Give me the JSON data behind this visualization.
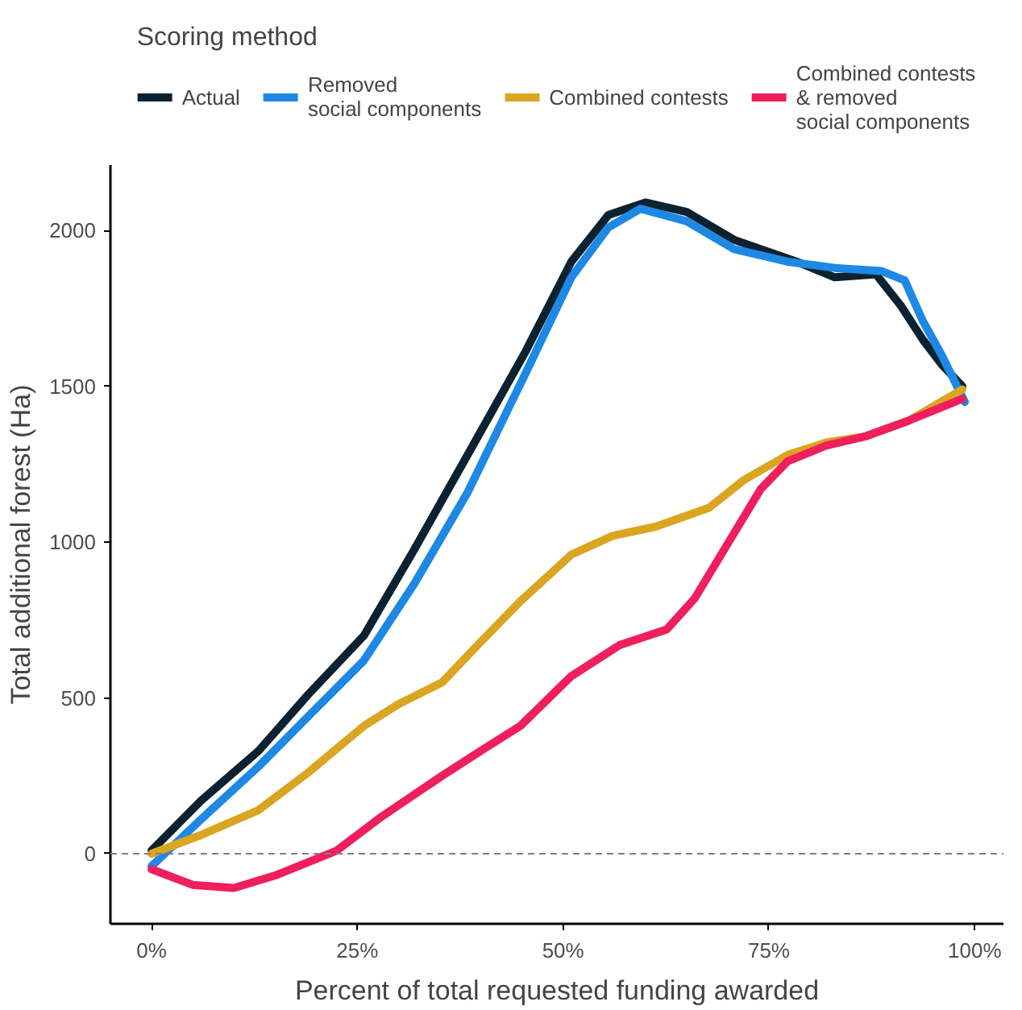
{
  "chart_data": {
    "type": "line",
    "xlabel": "Percent of total requested funding awarded",
    "ylabel": "Total additional forest (Ha)",
    "legend_title": "Scoring method",
    "legend": "top",
    "grid": false,
    "line_style": "solid",
    "marker": "none",
    "xlim": [
      -5,
      103.5
    ],
    "ylim": [
      -225,
      2210
    ],
    "xticks": [
      {
        "value": 0,
        "label": "0%"
      },
      {
        "value": 25,
        "label": "25%"
      },
      {
        "value": 50,
        "label": "50%"
      },
      {
        "value": 75,
        "label": "75%"
      },
      {
        "value": 100,
        "label": "100%"
      }
    ],
    "yticks": [
      0,
      500,
      1000,
      1500,
      2000
    ],
    "ref_lines": [
      {
        "axis": "y",
        "value": 0,
        "color": "#808080",
        "line_style": "dashed"
      }
    ],
    "series": [
      {
        "name": "Actual",
        "color": "#0d2230",
        "x": [
          0,
          6,
          13,
          19,
          25.8,
          32,
          38.4,
          45.4,
          51,
          55.5,
          60,
          65,
          70.8,
          78.4,
          83,
          88,
          91,
          93.7,
          96,
          98.5
        ],
        "values": [
          10,
          170,
          330,
          510,
          700,
          980,
          1280,
          1610,
          1900,
          2050,
          2090,
          2060,
          1970,
          1900,
          1850,
          1860,
          1760,
          1650,
          1570,
          1500
        ]
      },
      {
        "name": "Removed\nsocial components",
        "color": "#1e88e5",
        "x": [
          0,
          6,
          13,
          19,
          25.8,
          32,
          38.4,
          45.4,
          51,
          55.5,
          59.4,
          65,
          70.8,
          77.3,
          83,
          88.7,
          91.5,
          93.7,
          96,
          98.8
        ],
        "values": [
          -40,
          110,
          280,
          440,
          620,
          870,
          1160,
          1540,
          1850,
          2010,
          2070,
          2030,
          1940,
          1900,
          1880,
          1870,
          1840,
          1710,
          1600,
          1450
        ]
      },
      {
        "name": "Combined contests",
        "color": "#daa520",
        "x": [
          0,
          6,
          13,
          19,
          25.8,
          30,
          35.3,
          40,
          44.8,
          51,
          56,
          61.3,
          67.7,
          72,
          77.3,
          82,
          86.8,
          92,
          98.5
        ],
        "values": [
          0,
          60,
          140,
          260,
          410,
          480,
          550,
          680,
          810,
          960,
          1020,
          1050,
          1110,
          1200,
          1280,
          1320,
          1340,
          1390,
          1490
        ]
      },
      {
        "name": "Combined contests\n& removed\nsocial components",
        "color": "#ef1f5e",
        "x": [
          0,
          5,
          10,
          15,
          22.5,
          28,
          35.3,
          40,
          44.8,
          51,
          56.9,
          62.6,
          66,
          70.8,
          74,
          77.3,
          82,
          86.8,
          92,
          98.5
        ],
        "values": [
          -50,
          -100,
          -110,
          -70,
          10,
          120,
          250,
          330,
          410,
          570,
          670,
          720,
          820,
          1030,
          1170,
          1260,
          1310,
          1340,
          1390,
          1460
        ]
      }
    ]
  }
}
